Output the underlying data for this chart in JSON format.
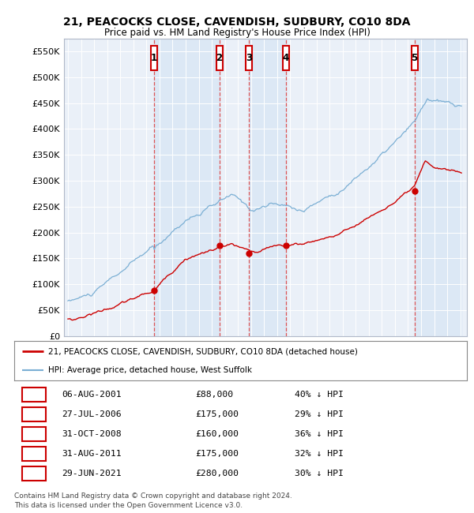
{
  "title1": "21, PEACOCKS CLOSE, CAVENDISH, SUDBURY, CO10 8DA",
  "title2": "Price paid vs. HM Land Registry's House Price Index (HPI)",
  "ylim": [
    0,
    575000
  ],
  "yticks": [
    0,
    50000,
    100000,
    150000,
    200000,
    250000,
    300000,
    350000,
    400000,
    450000,
    500000,
    550000
  ],
  "ytick_labels": [
    "£0",
    "£50K",
    "£100K",
    "£150K",
    "£200K",
    "£250K",
    "£300K",
    "£350K",
    "£400K",
    "£450K",
    "£500K",
    "£550K"
  ],
  "legend1": "21, PEACOCKS CLOSE, CAVENDISH, SUDBURY, CO10 8DA (detached house)",
  "legend2": "HPI: Average price, detached house, West Suffolk",
  "footer1": "Contains HM Land Registry data © Crown copyright and database right 2024.",
  "footer2": "This data is licensed under the Open Government Licence v3.0.",
  "sale_dates_x": [
    2001.59,
    2006.57,
    2008.83,
    2011.66,
    2021.49
  ],
  "sale_prices_y": [
    88000,
    175000,
    160000,
    175000,
    280000
  ],
  "sale_labels": [
    "1",
    "2",
    "3",
    "4",
    "5"
  ],
  "sale_table": [
    [
      "1",
      "06-AUG-2001",
      "£88,000",
      "40% ↓ HPI"
    ],
    [
      "2",
      "27-JUL-2006",
      "£175,000",
      "29% ↓ HPI"
    ],
    [
      "3",
      "31-OCT-2008",
      "£160,000",
      "36% ↓ HPI"
    ],
    [
      "4",
      "31-AUG-2011",
      "£175,000",
      "32% ↓ HPI"
    ],
    [
      "5",
      "29-JUN-2021",
      "£280,000",
      "30% ↓ HPI"
    ]
  ],
  "hpi_color": "#7bafd4",
  "price_color": "#cc0000",
  "vline_color": "#dd4444",
  "box_color": "#cc0000",
  "shade_color": "#dce8f5",
  "bg_chart": "#eaf0f8",
  "bg_figure": "#ffffff"
}
